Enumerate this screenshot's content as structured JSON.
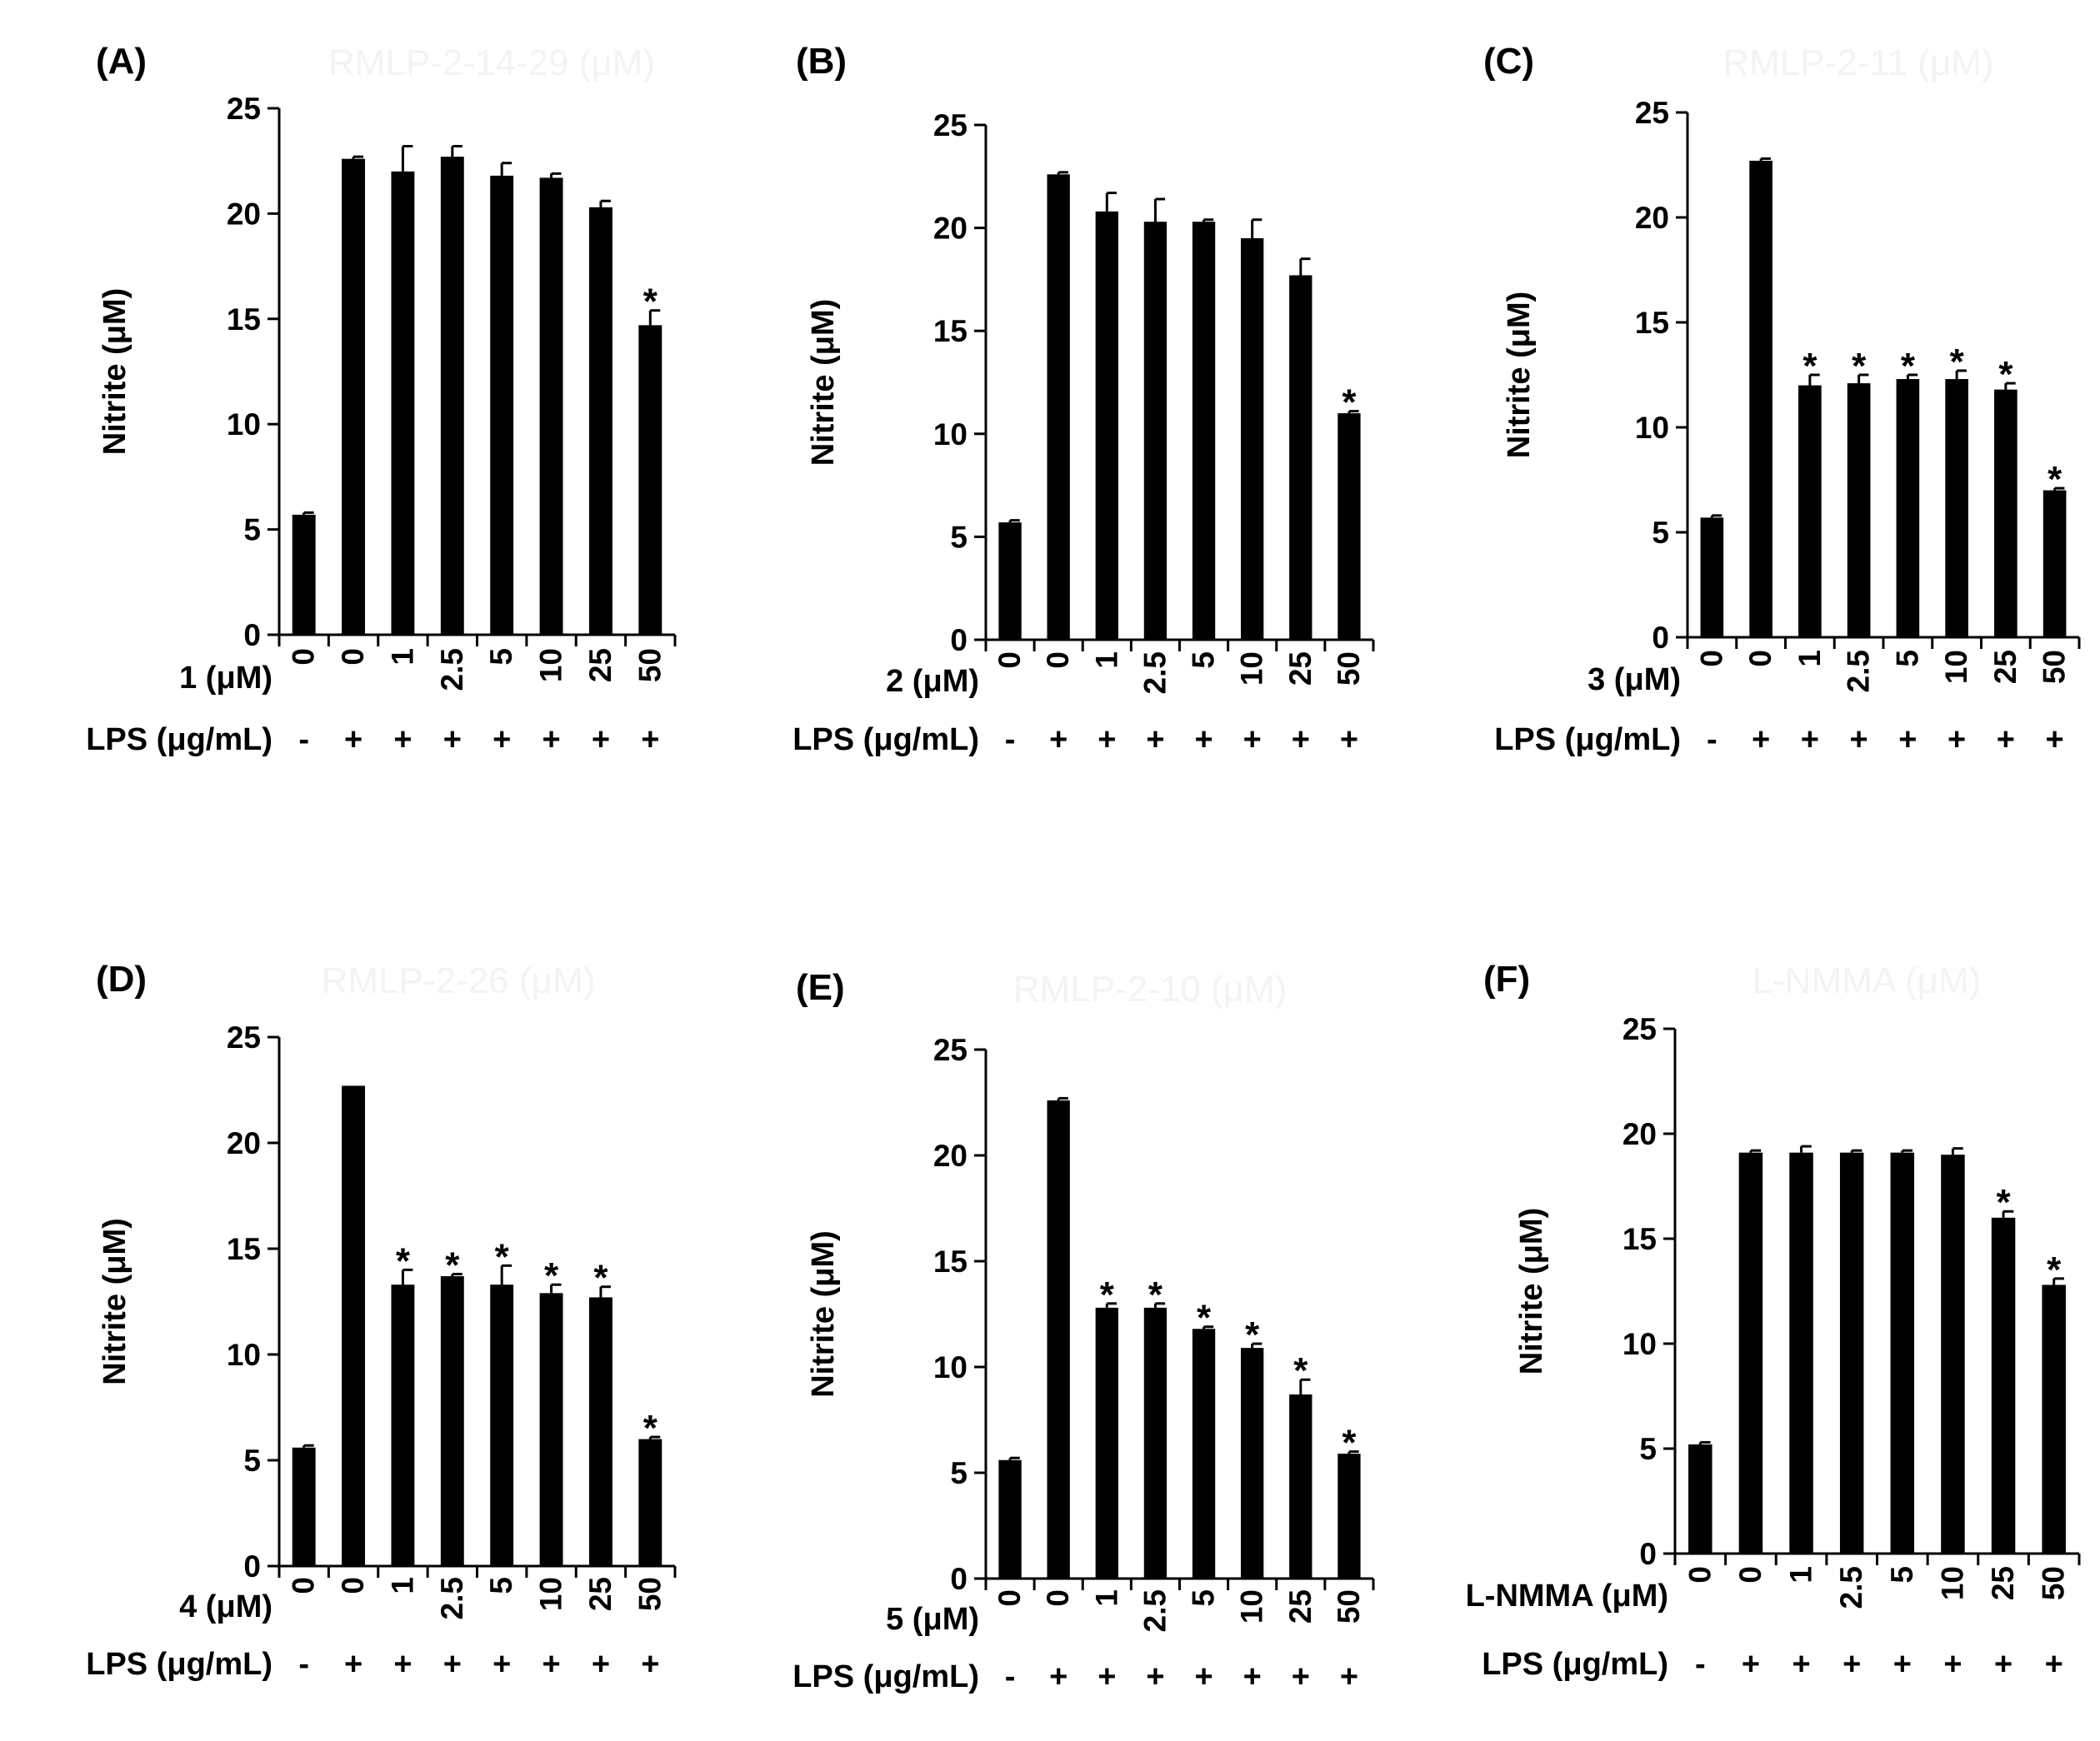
{
  "figure": {
    "description_labels": "Six-panel bar chart of nitrite production"
  },
  "colors": {
    "bar": "#000000",
    "axis": "#000000",
    "ghost_title": "#f2f2f2"
  },
  "chart_data": [
    {
      "panel": "(A)",
      "type": "bar",
      "ghost_title": "RMLP-2-14-29 (μM)",
      "ylabel": "Nitrite (μM)",
      "ylim": [
        0,
        25
      ],
      "yticks": [
        0,
        5,
        10,
        15,
        20,
        25
      ],
      "compound_label": "1 (μM)",
      "lps_label": "LPS (μg/mL)",
      "categories": [
        "0",
        "0",
        "1",
        "2.5",
        "5",
        "10",
        "25",
        "50"
      ],
      "lps": [
        "-",
        "+",
        "+",
        "+",
        "+",
        "+",
        "+",
        "+"
      ],
      "values": [
        5.7,
        22.6,
        22.0,
        22.7,
        21.8,
        21.7,
        20.3,
        14.7
      ],
      "errors": [
        0.1,
        0.1,
        1.2,
        0.5,
        0.6,
        0.2,
        0.3,
        0.7
      ],
      "significant": [
        "",
        "",
        "",
        "",
        "",
        "",
        "",
        "*"
      ]
    },
    {
      "panel": "(B)",
      "type": "bar",
      "ghost_title": "",
      "ylabel": "Nitrite (μM)",
      "ylim": [
        0,
        25
      ],
      "yticks": [
        0,
        5,
        10,
        15,
        20,
        25
      ],
      "compound_label": "2 (μM)",
      "lps_label": "LPS (μg/mL)",
      "categories": [
        "0",
        "0",
        "1",
        "2.5",
        "5",
        "10",
        "25",
        "50"
      ],
      "lps": [
        "-",
        "+",
        "+",
        "+",
        "+",
        "+",
        "+",
        "+"
      ],
      "values": [
        5.7,
        22.6,
        20.8,
        20.3,
        20.3,
        19.5,
        17.7,
        11.0
      ],
      "errors": [
        0.1,
        0.1,
        0.9,
        1.1,
        0.1,
        0.9,
        0.8,
        0.1
      ],
      "significant": [
        "",
        "",
        "",
        "",
        "",
        "",
        "",
        "*"
      ]
    },
    {
      "panel": "(C)",
      "type": "bar",
      "ghost_title": "RMLP-2-11 (μM)",
      "ylabel": "Nitrite (μM)",
      "ylim": [
        0,
        25
      ],
      "yticks": [
        0,
        5,
        10,
        15,
        20,
        25
      ],
      "compound_label": "3 (μM)",
      "lps_label": "LPS (μg/mL)",
      "categories": [
        "0",
        "0",
        "1",
        "2.5",
        "5",
        "10",
        "25",
        "50"
      ],
      "lps": [
        "-",
        "+",
        "+",
        "+",
        "+",
        "+",
        "+",
        "+"
      ],
      "values": [
        5.7,
        22.7,
        12.0,
        12.1,
        12.3,
        12.3,
        11.8,
        7.0
      ],
      "errors": [
        0.1,
        0.1,
        0.5,
        0.4,
        0.2,
        0.4,
        0.3,
        0.1
      ],
      "significant": [
        "",
        "",
        "*",
        "*",
        "*",
        "*",
        "*",
        "*"
      ]
    },
    {
      "panel": "(D)",
      "type": "bar",
      "ghost_title": "RMLP-2-26 (μM)",
      "ylabel": "Nitrite (μM)",
      "ylim": [
        0,
        25
      ],
      "yticks": [
        0,
        5,
        10,
        15,
        20,
        25
      ],
      "compound_label": "4 (μM)",
      "lps_label": "LPS (μg/mL)",
      "categories": [
        "0",
        "0",
        "1",
        "2.5",
        "5",
        "10",
        "25",
        "50"
      ],
      "lps": [
        "-",
        "+",
        "+",
        "+",
        "+",
        "+",
        "+",
        "+"
      ],
      "values": [
        5.6,
        22.7,
        13.3,
        13.7,
        13.3,
        12.9,
        12.7,
        6.0
      ],
      "errors": [
        0.1,
        0.0,
        0.7,
        0.1,
        0.9,
        0.4,
        0.5,
        0.1
      ],
      "significant": [
        "",
        "",
        "*",
        "*",
        "*",
        "*",
        "*",
        "*"
      ]
    },
    {
      "panel": "(E)",
      "type": "bar",
      "ghost_title": "RMLP-2-10 (μM)",
      "ylabel": "Nitrite (μM)",
      "ylim": [
        0,
        25
      ],
      "yticks": [
        0,
        5,
        10,
        15,
        20,
        25
      ],
      "compound_label": "5 (μM)",
      "lps_label": "LPS (μg/mL)",
      "categories": [
        "0",
        "0",
        "1",
        "2.5",
        "5",
        "10",
        "25",
        "50"
      ],
      "lps": [
        "-",
        "+",
        "+",
        "+",
        "+",
        "+",
        "+",
        "+"
      ],
      "values": [
        5.6,
        22.6,
        12.8,
        12.8,
        11.8,
        10.9,
        8.7,
        5.9
      ],
      "errors": [
        0.1,
        0.1,
        0.2,
        0.2,
        0.1,
        0.2,
        0.7,
        0.1
      ],
      "significant": [
        "",
        "",
        "*",
        "*",
        "*",
        "*",
        "*",
        "*"
      ]
    },
    {
      "panel": "(F)",
      "type": "bar",
      "ghost_title": "L-NMMA (μM)",
      "ylabel": "Nitrite (μM)",
      "ylim": [
        0,
        25
      ],
      "yticks": [
        0,
        5,
        10,
        15,
        20,
        25
      ],
      "compound_label": "L-NMMA  (μM)",
      "lps_label": "LPS (μg/mL)",
      "categories": [
        "0",
        "0",
        "1",
        "2.5",
        "5",
        "10",
        "25",
        "50"
      ],
      "lps": [
        "-",
        "+",
        "+",
        "+",
        "+",
        "+",
        "+",
        "+"
      ],
      "values": [
        5.2,
        19.1,
        19.1,
        19.1,
        19.1,
        19.0,
        16.0,
        12.8
      ],
      "errors": [
        0.1,
        0.1,
        0.3,
        0.1,
        0.1,
        0.3,
        0.3,
        0.3
      ],
      "significant": [
        "",
        "",
        "",
        "",
        "",
        "",
        "*",
        "*"
      ]
    }
  ]
}
